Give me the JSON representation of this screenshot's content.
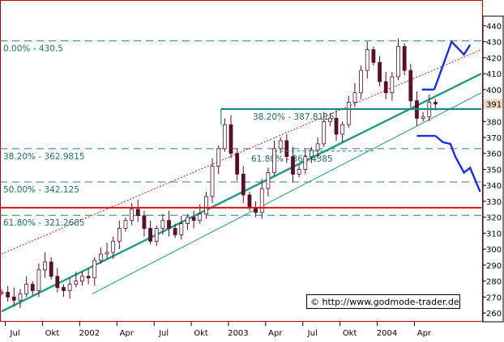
{
  "chart_data": {
    "type": "candlestick",
    "y_ticks": [
      260,
      270,
      280,
      290,
      300,
      310,
      320,
      330,
      340,
      350,
      360,
      370,
      380,
      390,
      400,
      410,
      420,
      430,
      440
    ],
    "ylim": [
      255,
      446
    ],
    "current_price_label": "391",
    "x_ticks": [
      {
        "label": "Jul",
        "t": 0.3
      },
      {
        "label": "Okt",
        "t": 3.3
      },
      {
        "label": "2002",
        "t": 6.3
      },
      {
        "label": "Apr",
        "t": 9.3
      },
      {
        "label": "Jul",
        "t": 12.3
      },
      {
        "label": "Okt",
        "t": 15.3
      },
      {
        "label": "2003",
        "t": 18.3
      },
      {
        "label": "Apr",
        "t": 21.3
      },
      {
        "label": "Jul",
        "t": 24.3
      },
      {
        "label": "Okt",
        "t": 27.3
      },
      {
        "label": "2004",
        "t": 30.3
      },
      {
        "label": "Apr",
        "t": 33.3
      }
    ],
    "fib_levels": [
      {
        "label": "0.00% - 430.5",
        "value": 430.5
      },
      {
        "label": "38.20% - 362.9815",
        "value": 362.9815
      },
      {
        "label": "50.00% - 342.125",
        "value": 342.125
      },
      {
        "label": "61.80% - 321.2685",
        "value": 321.2685
      }
    ],
    "inner_fib_levels": [
      {
        "label": "38.20% - 387.8115",
        "value": 387.8115
      },
      {
        "label": "61.80% - 361.4385",
        "value": 361.4385
      }
    ],
    "horizontal_red_line": 326,
    "close_series": [
      {
        "t": 0.0,
        "v": 273
      },
      {
        "t": 0.5,
        "v": 270
      },
      {
        "t": 1.0,
        "v": 268
      },
      {
        "t": 1.5,
        "v": 272
      },
      {
        "t": 2.0,
        "v": 278
      },
      {
        "t": 2.5,
        "v": 274
      },
      {
        "t": 3.0,
        "v": 287
      },
      {
        "t": 3.5,
        "v": 292
      },
      {
        "t": 4.0,
        "v": 283
      },
      {
        "t": 4.5,
        "v": 276
      },
      {
        "t": 5.0,
        "v": 274
      },
      {
        "t": 5.5,
        "v": 278
      },
      {
        "t": 6.0,
        "v": 280
      },
      {
        "t": 6.5,
        "v": 283
      },
      {
        "t": 7.0,
        "v": 282
      },
      {
        "t": 7.5,
        "v": 293
      },
      {
        "t": 8.0,
        "v": 297
      },
      {
        "t": 8.5,
        "v": 298
      },
      {
        "t": 9.0,
        "v": 305
      },
      {
        "t": 9.5,
        "v": 313
      },
      {
        "t": 10.0,
        "v": 318
      },
      {
        "t": 10.5,
        "v": 325
      },
      {
        "t": 11.0,
        "v": 321
      },
      {
        "t": 11.5,
        "v": 313
      },
      {
        "t": 12.0,
        "v": 305
      },
      {
        "t": 12.5,
        "v": 313
      },
      {
        "t": 13.0,
        "v": 318
      },
      {
        "t": 13.5,
        "v": 313
      },
      {
        "t": 14.0,
        "v": 309
      },
      {
        "t": 14.5,
        "v": 316
      },
      {
        "t": 15.0,
        "v": 320
      },
      {
        "t": 15.5,
        "v": 318
      },
      {
        "t": 16.0,
        "v": 322
      },
      {
        "t": 16.5,
        "v": 333
      },
      {
        "t": 17.0,
        "v": 352
      },
      {
        "t": 17.5,
        "v": 363
      },
      {
        "t": 18.0,
        "v": 378
      },
      {
        "t": 18.5,
        "v": 360
      },
      {
        "t": 19.0,
        "v": 347
      },
      {
        "t": 19.5,
        "v": 334
      },
      {
        "t": 20.0,
        "v": 326
      },
      {
        "t": 20.5,
        "v": 323
      },
      {
        "t": 21.0,
        "v": 338
      },
      {
        "t": 21.5,
        "v": 348
      },
      {
        "t": 22.0,
        "v": 363
      },
      {
        "t": 22.5,
        "v": 368
      },
      {
        "t": 23.0,
        "v": 358
      },
      {
        "t": 23.5,
        "v": 347
      },
      {
        "t": 24.0,
        "v": 350
      },
      {
        "t": 24.5,
        "v": 358
      },
      {
        "t": 25.0,
        "v": 362
      },
      {
        "t": 25.5,
        "v": 366
      },
      {
        "t": 26.0,
        "v": 380
      },
      {
        "t": 26.5,
        "v": 382
      },
      {
        "t": 27.0,
        "v": 372
      },
      {
        "t": 27.5,
        "v": 378
      },
      {
        "t": 28.0,
        "v": 392
      },
      {
        "t": 28.5,
        "v": 398
      },
      {
        "t": 29.0,
        "v": 412
      },
      {
        "t": 29.5,
        "v": 425
      },
      {
        "t": 30.0,
        "v": 417
      },
      {
        "t": 30.5,
        "v": 405
      },
      {
        "t": 31.0,
        "v": 398
      },
      {
        "t": 31.5,
        "v": 408
      },
      {
        "t": 32.0,
        "v": 427
      },
      {
        "t": 32.5,
        "v": 412
      },
      {
        "t": 33.0,
        "v": 393
      },
      {
        "t": 33.5,
        "v": 382
      },
      {
        "t": 34.0,
        "v": 383
      },
      {
        "t": 34.5,
        "v": 392
      },
      {
        "t": 35.0,
        "v": 391
      }
    ],
    "bull_scenario": [
      {
        "t": 34.9,
        "v": 400
      },
      {
        "t": 36.3,
        "v": 430
      },
      {
        "t": 37.3,
        "v": 422
      },
      {
        "t": 37.8,
        "v": 428
      }
    ],
    "bear_scenario": [
      {
        "t": 34.9,
        "v": 380
      },
      {
        "t": 35.9,
        "v": 363
      },
      {
        "t": 36.5,
        "v": 358
      },
      {
        "t": 37.2,
        "v": 344
      },
      {
        "t": 37.6,
        "v": 350
      },
      {
        "t": 38.5,
        "v": 336
      }
    ],
    "copyright": "© http://www.godmode-trader.de"
  }
}
